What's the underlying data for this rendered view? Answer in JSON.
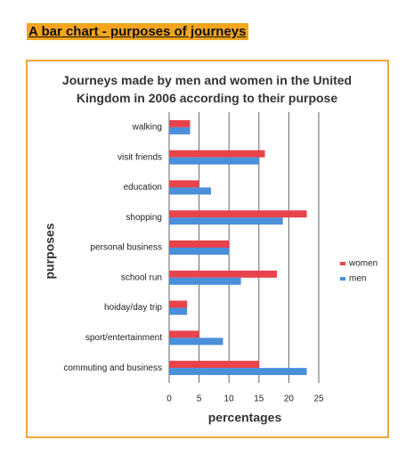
{
  "heading": "A bar chart - purposes of journeys",
  "chart_data": {
    "type": "hbar",
    "title": "Journeys made by men and women in the United Kingdom in 2006 according to their purpose",
    "xlabel": "percentages",
    "ylabel": "purposes",
    "categories": [
      "walking",
      "visit friends",
      "education",
      "shopping",
      "personal business",
      "school run",
      "hoiday/day trip",
      "sport/entertainment",
      "commuting and business"
    ],
    "series": [
      {
        "name": "women",
        "color": "#e8424a",
        "values": [
          3.5,
          16,
          5,
          23,
          10,
          18,
          3,
          5,
          15
        ]
      },
      {
        "name": "men",
        "color": "#4a8fd9",
        "values": [
          3.5,
          15,
          7,
          19,
          10,
          12,
          3,
          9,
          23
        ]
      }
    ],
    "xlim": [
      0,
      25
    ],
    "xticks": [
      0,
      5,
      10,
      15,
      20,
      25
    ],
    "grid": true,
    "legend": "right"
  }
}
